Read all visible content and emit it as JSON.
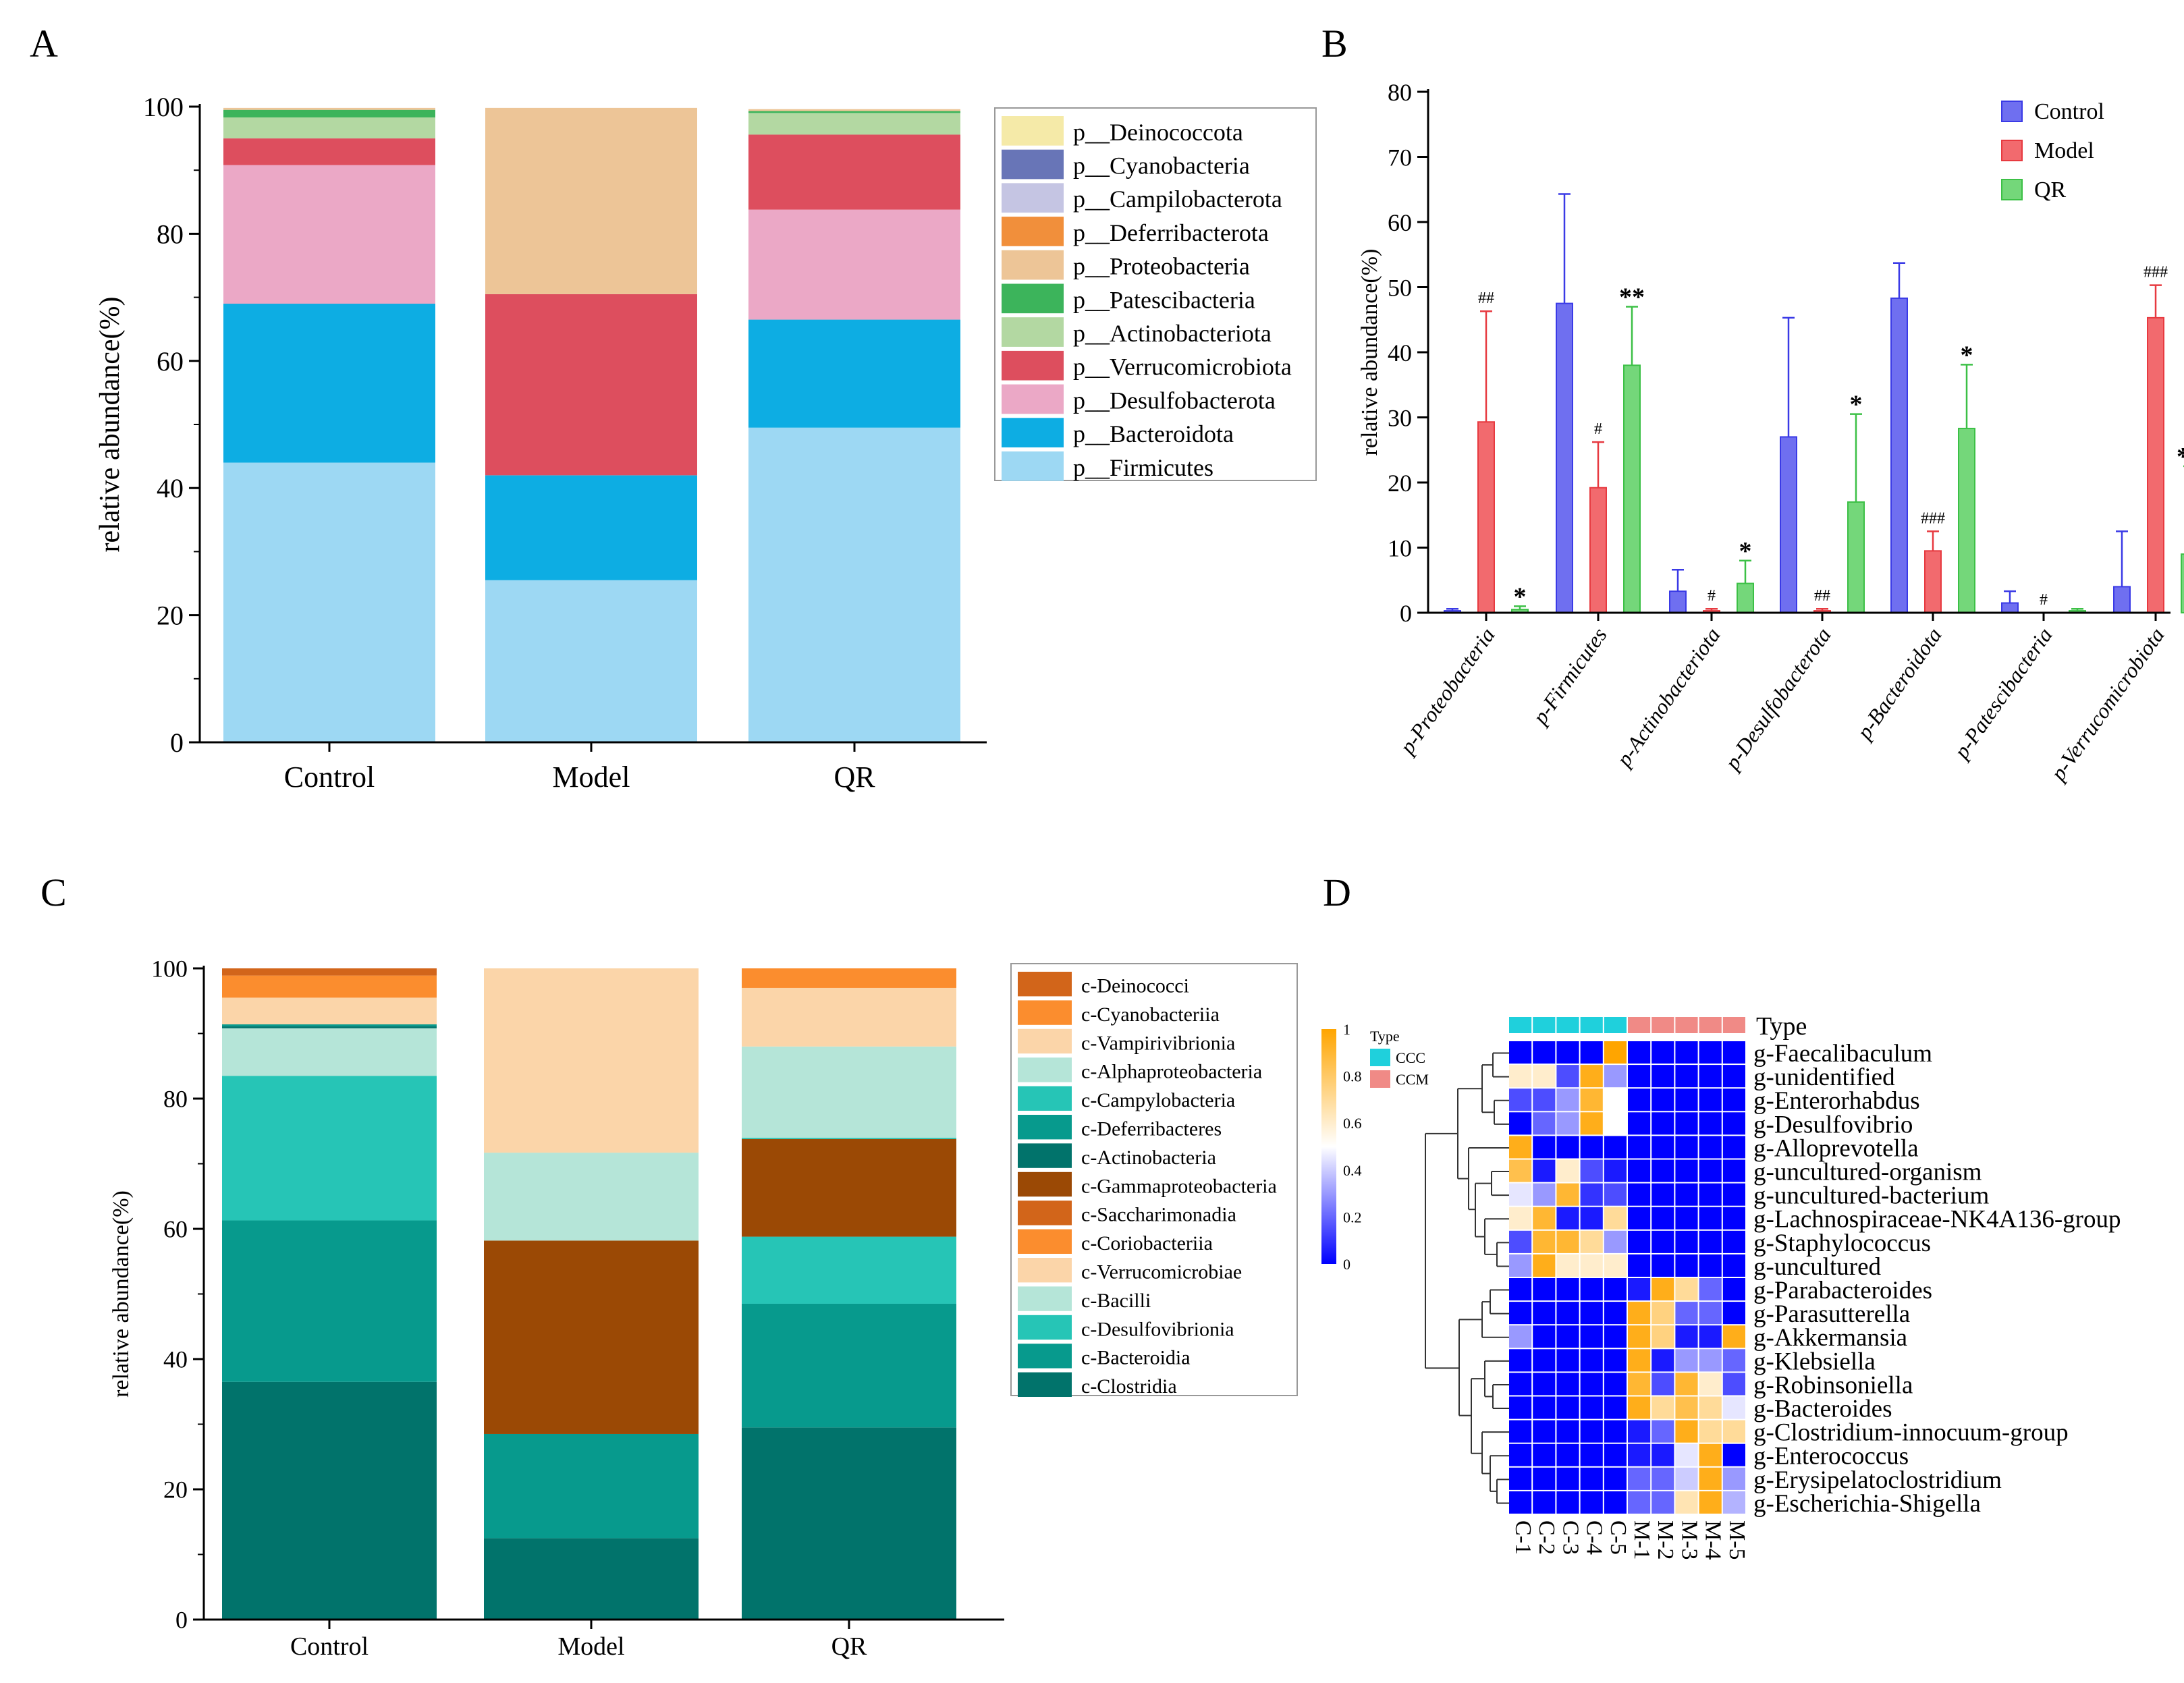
{
  "panels": {
    "A": "A",
    "B": "B",
    "C": "C",
    "D": "D"
  },
  "chart_data": [
    {
      "id": "A",
      "type": "bar",
      "stacked": true,
      "ylabel": "relative abundance(%)",
      "xlabel": "",
      "ylim": [
        0,
        100
      ],
      "yticks": [
        0,
        20,
        40,
        60,
        80,
        100
      ],
      "categories": [
        "Control",
        "Model",
        "QR"
      ],
      "series": [
        {
          "name": "p__Firmicutes",
          "color": "#9DD8F3",
          "values": [
            44,
            25.5,
            49.5
          ]
        },
        {
          "name": "p__Bacteroidota",
          "color": "#0DADE3",
          "values": [
            25,
            16.5,
            17
          ]
        },
        {
          "name": "p__Desulfobacterota",
          "color": "#EBA8C6",
          "values": [
            21.8,
            0,
            17.3
          ]
        },
        {
          "name": "p__Verrucomicrobiota",
          "color": "#DD4E5E",
          "values": [
            4.2,
            28.5,
            11.8
          ]
        },
        {
          "name": "p__Actinobacteriota",
          "color": "#B3D8A2",
          "values": [
            3.3,
            0,
            3.4
          ]
        },
        {
          "name": "p__Patescibacteria",
          "color": "#3CB45B",
          "values": [
            1.2,
            0,
            0.3
          ]
        },
        {
          "name": "p__Proteobacteria",
          "color": "#EDC597",
          "values": [
            0.3,
            29.3,
            0.3
          ]
        },
        {
          "name": "p__Deferribacterota",
          "color": "#F18F3B",
          "values": [
            0,
            0,
            0
          ]
        },
        {
          "name": "p__Campilobacterota",
          "color": "#C5C5E3",
          "values": [
            0,
            0,
            0
          ]
        },
        {
          "name": "p__Cyanobacteria",
          "color": "#6875B7",
          "values": [
            0,
            0,
            0
          ]
        },
        {
          "name": "p__Deinococcota",
          "color": "#F5EAA8",
          "values": [
            0,
            0,
            0
          ]
        }
      ],
      "legend_order": [
        "p__Deinococcota",
        "p__Cyanobacteria",
        "p__Campilobacterota",
        "p__Deferribacterota",
        "p__Proteobacteria",
        "p__Patescibacteria",
        "p__Actinobacteriota",
        "p__Verrucomicrobiota",
        "p__Desulfobacterota",
        "p__Bacteroidota",
        "p__Firmicutes"
      ]
    },
    {
      "id": "B",
      "type": "bar",
      "grouped": true,
      "ylabel": "relative abundance(%)",
      "ylim": [
        0,
        80
      ],
      "yticks": [
        0,
        10,
        20,
        30,
        40,
        50,
        60,
        70,
        80
      ],
      "categories": [
        "p-Proteobacteria",
        "p-Firmicutes",
        "p-Actinobacteriota",
        "p-Desulfobacterota",
        "p-Bacteroidota",
        "p-Patescibacteria",
        "p-Verrucomicrobiota"
      ],
      "series": [
        {
          "name": "Control",
          "color": "#6F6FF0",
          "edge": "#3A3AE6",
          "values": [
            0.3,
            47.5,
            3.3,
            27,
            48.3,
            1.5,
            4
          ],
          "errors": [
            0.3,
            16.8,
            3.3,
            18.3,
            5.4,
            1.8,
            8.5
          ],
          "marks": [
            "",
            "",
            "",
            "",
            "",
            "",
            ""
          ]
        },
        {
          "name": "Model",
          "color": "#F26A6E",
          "edge": "#E73A40",
          "values": [
            29.3,
            19.2,
            0.3,
            0.3,
            9.5,
            0,
            45.3
          ],
          "errors": [
            17,
            7,
            0.3,
            0.3,
            3,
            0,
            5
          ],
          "marks": [
            "##",
            "#",
            "#",
            "##",
            "###",
            "#",
            "###"
          ]
        },
        {
          "name": "QR",
          "color": "#74D77A",
          "edge": "#3CC046",
          "values": [
            0.5,
            38,
            4.5,
            17,
            28.3,
            0.3,
            9
          ],
          "errors": [
            0.5,
            9,
            3.5,
            13.5,
            9.8,
            0.3,
            13.5
          ],
          "marks": [
            "*",
            "**",
            "*",
            "*",
            "*",
            "",
            "**"
          ]
        }
      ]
    },
    {
      "id": "C",
      "type": "bar",
      "stacked": true,
      "ylabel": "relative abundance(%)",
      "ylim": [
        0,
        100
      ],
      "yticks": [
        0,
        20,
        40,
        60,
        80,
        100
      ],
      "categories": [
        "Control",
        "Model",
        "QR"
      ],
      "series": [
        {
          "name": "c-Clostridia",
          "color": "#01736B",
          "values": [
            36.5,
            12.5,
            29.5
          ]
        },
        {
          "name": "c-Bacteroidia",
          "color": "#079A8D",
          "values": [
            24.8,
            16,
            19
          ]
        },
        {
          "name": "c-Desulfovibrionia",
          "color": "#26C5B6",
          "values": [
            22.2,
            0,
            10.3
          ]
        },
        {
          "name": "c-Bacilli",
          "color": "#B5E5D8",
          "values": [
            7.3,
            0,
            0
          ]
        },
        {
          "name": "c-Verrucomicrobiae",
          "color": "#FBD5A9",
          "values": [
            0,
            0,
            0
          ]
        },
        {
          "name": "c-Coriobacteriia",
          "color": "#FB8D2E",
          "values": [
            0,
            0,
            0
          ]
        },
        {
          "name": "c-Saccharimonadia",
          "color": "#D2651A",
          "values": [
            0,
            0,
            0
          ]
        },
        {
          "name": "c-Gammaproteobacteria",
          "color": "#9B4905",
          "values": [
            0,
            29.7,
            15
          ]
        },
        {
          "name": "c-Actinobacteria",
          "color": "#01736B",
          "values": [
            0.3,
            0,
            0
          ]
        },
        {
          "name": "c-Deferribacteres",
          "color": "#079A8D",
          "values": [
            0.3,
            0,
            0
          ]
        },
        {
          "name": "c-Campylobacteria",
          "color": "#26C5B6",
          "values": [
            0,
            0,
            0.2
          ]
        },
        {
          "name": "c-Alphaproteobacteria",
          "color": "#B5E5D8",
          "values": [
            0,
            13.5,
            14
          ]
        },
        {
          "name": "c-Vampirivibrionia",
          "color": "#FBD5A9",
          "values": [
            4.1,
            28.3,
            9
          ]
        },
        {
          "name": "c-Cyanobacteriia",
          "color": "#FB8D2E",
          "values": [
            3.4,
            0,
            3
          ]
        },
        {
          "name": "c-Deinococci",
          "color": "#D2651A",
          "values": [
            1.1,
            0,
            0
          ]
        }
      ],
      "legend_order": [
        "c-Deinococci",
        "c-Cyanobacteriia",
        "c-Vampirivibrionia",
        "c-Alphaproteobacteria",
        "c-Campylobacteria",
        "c-Deferribacteres",
        "c-Actinobacteria",
        "c-Gammaproteobacteria",
        "c-Saccharimonadia",
        "c-Coriobacteriia",
        "c-Verrucomicrobiae",
        "c-Bacilli",
        "c-Desulfovibrionia",
        "c-Bacteroidia",
        "c-Clostridia"
      ]
    },
    {
      "id": "D",
      "type": "heatmap",
      "type_label": "Type",
      "legend_title": "Type",
      "group_legend": [
        {
          "name": "CCC",
          "color": "#1FD0DC"
        },
        {
          "name": "CCM",
          "color": "#F08A86"
        }
      ],
      "scale_ticks": [
        0,
        0.2,
        0.4,
        0.6,
        0.8,
        1
      ],
      "columns": [
        "C-1",
        "C-2",
        "C-3",
        "C-4",
        "C-5",
        "M-1",
        "M-2",
        "M-3",
        "M-4",
        "M-5"
      ],
      "column_groups": [
        "CCC",
        "CCC",
        "CCC",
        "CCC",
        "CCC",
        "CCM",
        "CCM",
        "CCM",
        "CCM",
        "CCM"
      ],
      "rows": [
        "g-Faecalibaculum",
        "g-unidentified",
        "g-Enterorhabdus",
        "g-Desulfovibrio",
        "g-Alloprevotella",
        "g-uncultured-organism",
        "g-uncultured-bacterium",
        "g-Lachnospiraceae-NK4A136-group",
        "g-Staphylococcus",
        "g-uncultured",
        "g-Parabacteroides",
        "g-Parasutterella",
        "g-Akkermansia",
        "g-Klebsiella",
        "g-Robinsoniella",
        "g-Bacteroides",
        "g-Clostridium-innocuum-group",
        "g-Enterococcus",
        "g-Erysipelatoclostridium",
        "g-Escherichia-Shigella"
      ],
      "values": [
        [
          0,
          0,
          0,
          0,
          1,
          0,
          0,
          0,
          0,
          0
        ],
        [
          0.6,
          0.6,
          0.15,
          0.95,
          0.3,
          0,
          0,
          0,
          0,
          0
        ],
        [
          0.15,
          0.15,
          0.3,
          0.9,
          0.5,
          0,
          0,
          0,
          0,
          0
        ],
        [
          0,
          0.2,
          0.3,
          0.95,
          0.5,
          0,
          0,
          0,
          0,
          0
        ],
        [
          0.95,
          0,
          0,
          0,
          0,
          0,
          0,
          0,
          0,
          0
        ],
        [
          0.85,
          0.05,
          0.6,
          0.15,
          0.05,
          0,
          0,
          0,
          0,
          0
        ],
        [
          0.45,
          0.3,
          0.9,
          0.1,
          0.15,
          0,
          0,
          0,
          0,
          0
        ],
        [
          0.6,
          0.9,
          0.05,
          0.05,
          0.7,
          0,
          0,
          0,
          0,
          0
        ],
        [
          0.15,
          0.9,
          0.9,
          0.7,
          0.3,
          0,
          0,
          0,
          0,
          0
        ],
        [
          0.3,
          0.95,
          0.6,
          0.6,
          0.6,
          0,
          0,
          0,
          0,
          0
        ],
        [
          0,
          0,
          0,
          0,
          0,
          0.05,
          0.95,
          0.7,
          0.2,
          0
        ],
        [
          0,
          0,
          0,
          0,
          0,
          0.95,
          0.75,
          0.2,
          0.2,
          0
        ],
        [
          0.3,
          0,
          0,
          0,
          0,
          0.95,
          0.75,
          0.05,
          0.05,
          0.95
        ],
        [
          0,
          0,
          0,
          0,
          0,
          0.95,
          0.05,
          0.3,
          0.3,
          0.2
        ],
        [
          0,
          0,
          0,
          0,
          0,
          0.9,
          0.15,
          0.9,
          0.6,
          0.15
        ],
        [
          0,
          0,
          0,
          0,
          0,
          0.95,
          0.7,
          0.85,
          0.7,
          0.45
        ],
        [
          0,
          0,
          0,
          0,
          0,
          0.05,
          0.2,
          0.95,
          0.7,
          0.7
        ],
        [
          0,
          0,
          0,
          0,
          0,
          0.05,
          0.05,
          0.45,
          0.95,
          0
        ],
        [
          0,
          0,
          0,
          0,
          0,
          0.2,
          0.2,
          0.4,
          0.95,
          0.3
        ],
        [
          0,
          0,
          0,
          0,
          0,
          0.2,
          0.2,
          0.65,
          0.95,
          0.35
        ]
      ]
    }
  ]
}
